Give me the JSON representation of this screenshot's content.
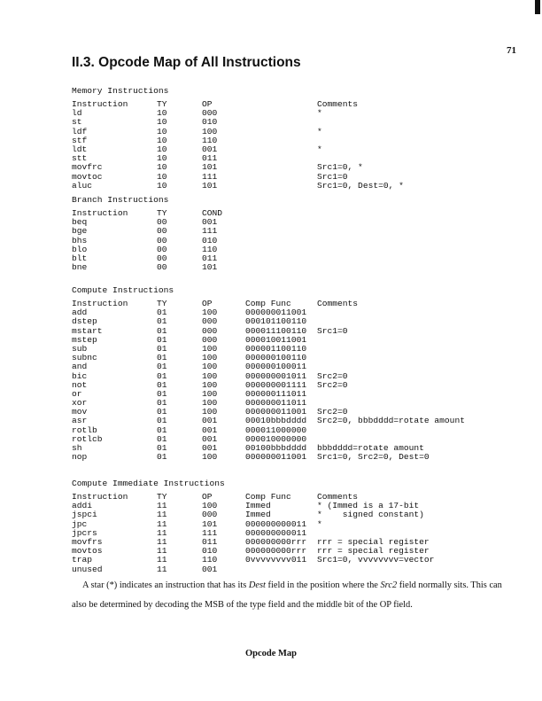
{
  "page_number": "71",
  "title": "II.3. Opcode Map of All Instructions",
  "sections": [
    {
      "heading": "Memory Instructions",
      "columns": [
        "Instruction",
        "TY",
        "OP",
        "Comments"
      ],
      "rows": [
        [
          "ld",
          "10",
          "000",
          "*"
        ],
        [
          "st",
          "10",
          "010",
          ""
        ],
        [
          "ldf",
          "10",
          "100",
          "*"
        ],
        [
          "stf",
          "10",
          "110",
          ""
        ],
        [
          "ldt",
          "10",
          "001",
          "*"
        ],
        [
          "stt",
          "10",
          "011",
          ""
        ],
        [
          "movfrc",
          "10",
          "101",
          "Src1=0, *"
        ],
        [
          "movtoc",
          "10",
          "111",
          "Src1=0"
        ],
        [
          "aluc",
          "10",
          "101",
          "Src1=0, Dest=0, *"
        ]
      ]
    },
    {
      "heading": "Branch Instructions",
      "columns": [
        "Instruction",
        "TY",
        "COND"
      ],
      "rows": [
        [
          "beq",
          "00",
          "001"
        ],
        [
          "bge",
          "00",
          "111"
        ],
        [
          "bhs",
          "00",
          "010"
        ],
        [
          "blo",
          "00",
          "110"
        ],
        [
          "blt",
          "00",
          "011"
        ],
        [
          "bne",
          "00",
          "101"
        ]
      ]
    },
    {
      "heading": "Compute Instructions",
      "columns": [
        "Instruction",
        "TY",
        "OP",
        "Comp Func",
        "Comments"
      ],
      "rows": [
        [
          "add",
          "01",
          "100",
          "000000011001",
          ""
        ],
        [
          "dstep",
          "01",
          "000",
          "000101100110",
          ""
        ],
        [
          "mstart",
          "01",
          "000",
          "000011100110",
          "Src1=0"
        ],
        [
          "mstep",
          "01",
          "000",
          "000010011001",
          ""
        ],
        [
          "sub",
          "01",
          "100",
          "000001100110",
          ""
        ],
        [
          "subnc",
          "01",
          "100",
          "000000100110",
          ""
        ],
        [
          "and",
          "01",
          "100",
          "000000100011",
          ""
        ],
        [
          "bic",
          "01",
          "100",
          "000000001011",
          "Src2=0"
        ],
        [
          "not",
          "01",
          "100",
          "000000001111",
          "Src2=0"
        ],
        [
          "or",
          "01",
          "100",
          "000000111011",
          ""
        ],
        [
          "xor",
          "01",
          "100",
          "000000011011",
          ""
        ],
        [
          "mov",
          "01",
          "100",
          "000000011001",
          "Src2=0"
        ],
        [
          "asr",
          "01",
          "001",
          "00010bbbdddd",
          "Src2=0, bbbdddd=rotate amount"
        ],
        [
          "rotlb",
          "01",
          "001",
          "000011000000",
          ""
        ],
        [
          "rotlcb",
          "01",
          "001",
          "000010000000",
          ""
        ],
        [
          "sh",
          "01",
          "001",
          "00100bbbdddd",
          "bbbdddd=rotate amount"
        ],
        [
          "nop",
          "01",
          "100",
          "000000011001",
          "Src1=0, Src2=0, Dest=0"
        ]
      ]
    },
    {
      "heading": "Compute Immediate Instructions",
      "columns": [
        "Instruction",
        "TY",
        "OP",
        "Comp Func",
        "Comments"
      ],
      "rows": [
        [
          "addi",
          "11",
          "100",
          "Immed",
          "* (Immed is a 17-bit"
        ],
        [
          "jspci",
          "11",
          "000",
          "Immed",
          "*    signed constant)"
        ],
        [
          "jpc",
          "11",
          "101",
          "000000000011",
          "*"
        ],
        [
          "jpcrs",
          "11",
          "111",
          "000000000011",
          ""
        ],
        [
          "movfrs",
          "11",
          "011",
          "000000000rrr",
          "rrr = special register"
        ],
        [
          "movtos",
          "11",
          "010",
          "000000000rrr",
          "rrr = special register"
        ],
        [
          "trap",
          "11",
          "110",
          "0vvvvvvvv011",
          "Src1=0, vvvvvvvv=vector"
        ],
        [
          "unused",
          "11",
          "001",
          "",
          ""
        ]
      ]
    }
  ],
  "note": {
    "p1": "A star (*) indicates an instruction that has its ",
    "dest": "Dest",
    "p2": " field in the position where the ",
    "src2": "Src2",
    "p3": " field normally sits.  This can",
    "line2": "also be determined by decoding the MSB of the type field and the middle bit of the OP field."
  },
  "footer": "Opcode Map"
}
